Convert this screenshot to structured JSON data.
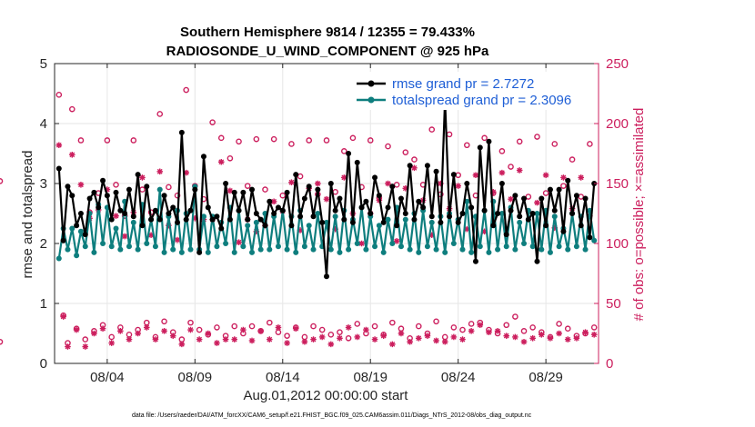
{
  "chart_data": {
    "type": "line",
    "title_line1": "Southern Hemisphere 9814 / 12355 = 79.433%",
    "title_line2": "RADIOSONDE_U_WIND_COMPONENT @ 925 hPa",
    "xlabel": "Aug.01,2012 00:00:00 start",
    "ylabel_left": "rmse and totalspread",
    "ylabel_right": "# of obs: o=possible; ×=assimilated",
    "footer": "data file: /Users/raeder/DAI/ATM_forcXX/CAM6_setup/f.e21.FHIST_BGC.f09_025.CAM6assim.011/Diags_NTrS_2012-08/obs_diag_output.nc",
    "x_range_days": [
      1.0,
      32.0
    ],
    "x_ticks": [
      {
        "day": 4,
        "label": "08/04"
      },
      {
        "day": 9,
        "label": "08/09"
      },
      {
        "day": 14,
        "label": "08/14"
      },
      {
        "day": 19,
        "label": "08/19"
      },
      {
        "day": 24,
        "label": "08/24"
      },
      {
        "day": 29,
        "label": "08/29"
      }
    ],
    "ylim_left": [
      0,
      5
    ],
    "yticks_left": [
      "0",
      "1",
      "2",
      "3",
      "4",
      "5"
    ],
    "ylim_right": [
      0,
      250
    ],
    "yticks_right": [
      "0",
      "50",
      "100",
      "150",
      "200",
      "250"
    ],
    "colors": {
      "rmse": "#000000",
      "totalspread": "#0e7e7e",
      "obs": "#cc1f5e",
      "legend_text": "#1f5fd6"
    },
    "legend": {
      "placement": "top-right",
      "entries": [
        "rmse grand pr = 2.7272",
        "totalspread grand pr = 2.3096"
      ]
    },
    "time_days": [
      1.25,
      1.5,
      1.75,
      2.0,
      2.25,
      2.5,
      2.75,
      3.0,
      3.25,
      3.5,
      3.75,
      4.0,
      4.25,
      4.5,
      4.75,
      5.0,
      5.25,
      5.5,
      5.75,
      6.0,
      6.25,
      6.5,
      6.75,
      7.0,
      7.25,
      7.5,
      7.75,
      8.0,
      8.25,
      8.5,
      8.75,
      9.0,
      9.25,
      9.5,
      9.75,
      10.0,
      10.25,
      10.5,
      10.75,
      11.0,
      11.25,
      11.5,
      11.75,
      12.0,
      12.25,
      12.5,
      12.75,
      13.0,
      13.25,
      13.5,
      13.75,
      14.0,
      14.25,
      14.5,
      14.75,
      15.0,
      15.25,
      15.5,
      15.75,
      16.0,
      16.25,
      16.5,
      16.75,
      17.0,
      17.25,
      17.5,
      17.75,
      18.0,
      18.25,
      18.5,
      18.75,
      19.0,
      19.25,
      19.5,
      19.75,
      20.0,
      20.25,
      20.5,
      20.75,
      21.0,
      21.25,
      21.5,
      21.75,
      22.0,
      22.25,
      22.5,
      22.75,
      23.0,
      23.25,
      23.5,
      23.75,
      24.0,
      24.25,
      24.5,
      24.75,
      25.0,
      25.25,
      25.5,
      25.75,
      26.0,
      26.25,
      26.5,
      26.75,
      27.0,
      27.25,
      27.5,
      27.75,
      28.0,
      28.25,
      28.5,
      28.75,
      29.0,
      29.25,
      29.5,
      29.75,
      30.0,
      30.25,
      30.5,
      30.75,
      31.0,
      31.25,
      31.5,
      31.75
    ],
    "series": [
      {
        "name": "rmse grand pr = 2.7272",
        "axis": "left",
        "marker": "filled-circle",
        "values": [
          3.25,
          2.05,
          2.95,
          2.8,
          2.3,
          2.5,
          2.15,
          2.75,
          2.85,
          2.6,
          3.05,
          2.8,
          2.4,
          2.85,
          2.55,
          2.5,
          2.9,
          2.45,
          3.15,
          2.3,
          2.95,
          2.4,
          2.55,
          2.4,
          2.8,
          2.5,
          2.6,
          2.35,
          3.85,
          2.4,
          2.55,
          2.9,
          1.85,
          3.45,
          2.6,
          2.4,
          2.45,
          2.25,
          3.0,
          2.4,
          2.85,
          2.55,
          2.85,
          2.4,
          2.9,
          2.5,
          2.4,
          2.3,
          2.7,
          2.5,
          2.6,
          2.55,
          2.85,
          2.3,
          3.15,
          2.45,
          2.75,
          2.95,
          2.45,
          2.9,
          2.35,
          1.45,
          3.0,
          2.55,
          2.75,
          2.4,
          3.5,
          2.35,
          3.35,
          2.6,
          2.7,
          2.5,
          3.1,
          2.8,
          2.35,
          2.6,
          2.95,
          2.3,
          2.75,
          2.5,
          3.3,
          2.4,
          2.7,
          2.6,
          3.3,
          2.45,
          3.2,
          2.35,
          4.4,
          2.45,
          3.15,
          2.35,
          2.5,
          3.0,
          2.6,
          1.7,
          3.6,
          2.55,
          3.7,
          2.3,
          2.5,
          3.0,
          2.15,
          2.55,
          2.8,
          2.45,
          2.75,
          2.4,
          2.5,
          1.7,
          2.75,
          2.3,
          2.9,
          2.55,
          2.9,
          2.2,
          3.05,
          2.5,
          2.8,
          2.3,
          2.75,
          2.1,
          3.0
        ]
      },
      {
        "name": "totalspread grand pr = 2.3096",
        "axis": "left",
        "marker": "filled-circle",
        "values": [
          1.75,
          2.25,
          1.9,
          2.25,
          1.8,
          2.2,
          1.95,
          2.5,
          1.85,
          2.65,
          2.0,
          2.6,
          1.95,
          2.25,
          1.9,
          2.7,
          1.95,
          2.35,
          1.9,
          2.65,
          2.0,
          2.4,
          1.95,
          2.9,
          1.85,
          2.45,
          1.9,
          2.55,
          1.85,
          2.5,
          1.9,
          2.95,
          1.9,
          2.45,
          1.85,
          2.45,
          1.95,
          2.35,
          2.0,
          2.6,
          1.85,
          2.55,
          1.95,
          2.3,
          1.85,
          2.35,
          1.9,
          2.5,
          1.9,
          2.45,
          1.95,
          2.55,
          1.9,
          2.45,
          1.85,
          2.55,
          1.95,
          2.3,
          1.9,
          2.5,
          1.95,
          2.35,
          1.9,
          2.45,
          1.85,
          2.55,
          1.9,
          2.4,
          2.0,
          2.6,
          1.9,
          2.45,
          1.95,
          2.3,
          1.85,
          2.4,
          2.0,
          2.6,
          1.95,
          2.4,
          1.9,
          2.5,
          1.85,
          2.55,
          1.95,
          2.35,
          1.9,
          2.45,
          1.85,
          2.5,
          2.0,
          2.4,
          1.9,
          2.7,
          1.85,
          2.45,
          1.95,
          2.55,
          1.85,
          2.7,
          1.9,
          2.5,
          1.95,
          2.6,
          1.9,
          2.35,
          2.0,
          2.55,
          1.95,
          2.5,
          1.9,
          2.55,
          1.85,
          2.45,
          1.95,
          2.25,
          1.9,
          2.5,
          1.95,
          2.45,
          1.9,
          2.55,
          2.05
        ]
      },
      {
        "name": "possible",
        "axis": "right",
        "marker": "open-circle",
        "values": [
          224,
          40,
          17,
          212,
          29,
          186,
          20,
          126,
          27,
          142,
          32,
          186,
          22,
          149,
          30,
          123,
          24,
          186,
          28,
          145,
          34,
          126,
          22,
          208,
          35,
          147,
          26,
          140,
          20,
          228,
          34,
          148,
          28,
          137,
          24,
          201,
          30,
          188,
          23,
          171,
          31,
          185,
          25,
          148,
          31,
          187,
          27,
          145,
          34,
          187,
          26,
          140,
          23,
          183,
          30,
          156,
          22,
          186,
          31,
          141,
          28,
          186,
          24,
          143,
          26,
          177,
          21,
          188,
          33,
          147,
          25,
          186,
          31,
          138,
          24,
          181,
          34,
          149,
          29,
          176,
          21,
          170,
          31,
          149,
          25,
          195,
          35,
          141,
          22,
          191,
          30,
          157,
          28,
          182,
          33,
          140,
          34,
          188,
          28,
          142,
          25,
          177,
          32,
          164,
          39,
          185,
          27,
          139,
          30,
          189,
          26,
          142,
          22,
          183,
          33,
          148,
          29,
          170,
          23,
          139,
          25,
          183,
          30,
          152,
          18
        ]
      },
      {
        "name": "assimilated",
        "axis": "right",
        "marker": "asterisk",
        "values": [
          182,
          39,
          14,
          174,
          28,
          149,
          14,
          121,
          25,
          128,
          29,
          145,
          17,
          123,
          27,
          106,
          20,
          126,
          25,
          155,
          30,
          107,
          20,
          160,
          27,
          115,
          23,
          103,
          16,
          159,
          28,
          121,
          20,
          120,
          25,
          120,
          17,
          168,
          20,
          144,
          20,
          101,
          28,
          120,
          19,
          110,
          27,
          115,
          20,
          135,
          30,
          127,
          17,
          151,
          29,
          111,
          18,
          146,
          20,
          150,
          22,
          137,
          16,
          112,
          21,
          155,
          30,
          125,
          22,
          100,
          28,
          125,
          20,
          136,
          23,
          150,
          16,
          102,
          25,
          146,
          18,
          163,
          21,
          136,
          23,
          107,
          19,
          150,
          18,
          129,
          22,
          148,
          20,
          112,
          27,
          157,
          32,
          110,
          26,
          143,
          27,
          159,
          23,
          137,
          22,
          161,
          18,
          127,
          21,
          134,
          24,
          157,
          21,
          113,
          25,
          155,
          20,
          129,
          21,
          155,
          26,
          123,
          24,
          147,
          15
        ]
      }
    ]
  }
}
